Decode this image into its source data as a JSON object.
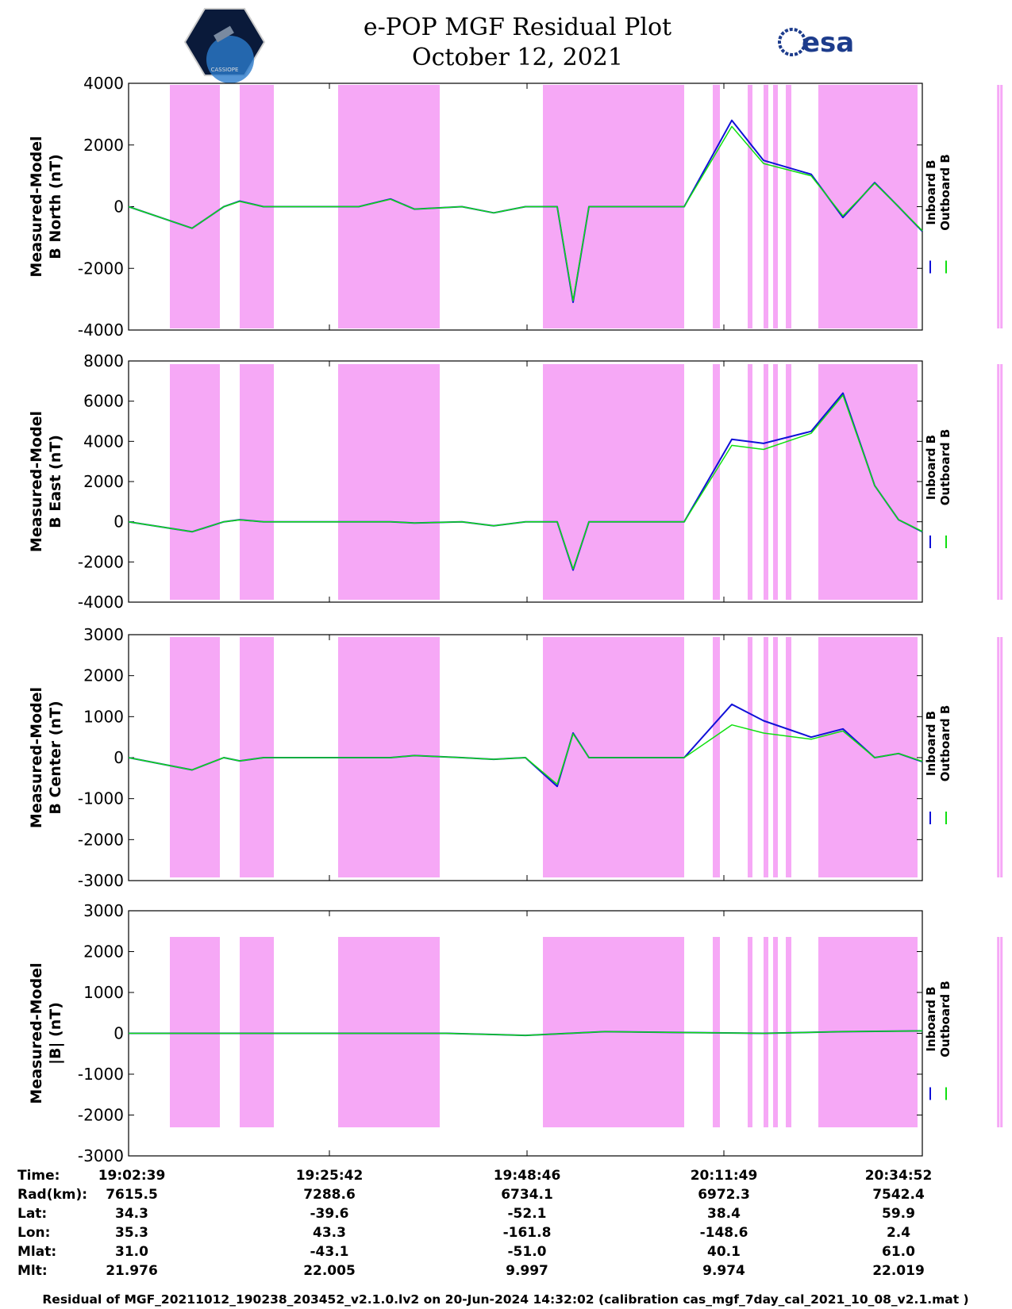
{
  "header": {
    "title": "e-POP MGF Residual Plot",
    "date": "October 12, 2021",
    "logo_left_text": "CASSIOPE",
    "logo_right_text": "esa"
  },
  "colors": {
    "inboard": "#1010d8",
    "outboard": "#10e010",
    "shade": "#f6a8f6"
  },
  "chart_data": [
    {
      "type": "line",
      "ylabel": [
        "Measured-Model",
        "B North (nT)"
      ],
      "ylim": [
        -4000,
        4000
      ],
      "yticks": [
        4000,
        2000,
        0,
        -2000,
        -4000
      ],
      "legend": [
        "Inboard B",
        "Outboard B"
      ],
      "series": [
        {
          "name": "Inboard B",
          "x": [
            0,
            0.08,
            0.12,
            0.14,
            0.17,
            0.22,
            0.27,
            0.29,
            0.33,
            0.36,
            0.42,
            0.46,
            0.5,
            0.54,
            0.56,
            0.58,
            0.6,
            0.63,
            0.66,
            0.7,
            0.76,
            0.8,
            0.86,
            0.9,
            0.94,
            0.97,
            1
          ],
          "y": [
            0,
            -700,
            0,
            180,
            0,
            0,
            0,
            0,
            250,
            -80,
            0,
            -200,
            0,
            0,
            -3100,
            0,
            0,
            0,
            0,
            0,
            2800,
            1500,
            1050,
            -350,
            780,
            0,
            -800
          ]
        },
        {
          "name": "Outboard B",
          "x": [
            0,
            0.08,
            0.12,
            0.14,
            0.17,
            0.22,
            0.27,
            0.29,
            0.33,
            0.36,
            0.42,
            0.46,
            0.5,
            0.54,
            0.56,
            0.58,
            0.6,
            0.63,
            0.66,
            0.7,
            0.76,
            0.8,
            0.86,
            0.9,
            0.94,
            0.97,
            1
          ],
          "y": [
            0,
            -700,
            0,
            170,
            0,
            0,
            0,
            0,
            240,
            -80,
            0,
            -200,
            0,
            0,
            -3050,
            0,
            0,
            0,
            0,
            0,
            2600,
            1400,
            1000,
            -300,
            760,
            0,
            -780
          ]
        }
      ]
    },
    {
      "type": "line",
      "ylabel": [
        "Measured-Model",
        "B East (nT)"
      ],
      "ylim": [
        -4000,
        8000
      ],
      "yticks": [
        8000,
        6000,
        4000,
        2000,
        0,
        -2000,
        -4000
      ],
      "legend": [
        "Inboard B",
        "Outboard B"
      ],
      "series": [
        {
          "name": "Inboard B",
          "x": [
            0,
            0.08,
            0.12,
            0.14,
            0.17,
            0.22,
            0.27,
            0.29,
            0.33,
            0.36,
            0.42,
            0.46,
            0.5,
            0.54,
            0.56,
            0.58,
            0.6,
            0.63,
            0.66,
            0.7,
            0.76,
            0.8,
            0.86,
            0.9,
            0.94,
            0.97,
            1
          ],
          "y": [
            0,
            -500,
            0,
            100,
            0,
            0,
            0,
            0,
            0,
            -60,
            0,
            -200,
            0,
            0,
            -2400,
            0,
            0,
            0,
            0,
            0,
            4100,
            3900,
            4500,
            6400,
            1800,
            100,
            -500
          ]
        },
        {
          "name": "Outboard B",
          "x": [
            0,
            0.08,
            0.12,
            0.14,
            0.17,
            0.22,
            0.27,
            0.29,
            0.33,
            0.36,
            0.42,
            0.46,
            0.5,
            0.54,
            0.56,
            0.58,
            0.6,
            0.63,
            0.66,
            0.7,
            0.76,
            0.8,
            0.86,
            0.9,
            0.94,
            0.97,
            1
          ],
          "y": [
            0,
            -500,
            0,
            90,
            0,
            0,
            0,
            0,
            0,
            -60,
            0,
            -200,
            0,
            0,
            -2350,
            0,
            0,
            0,
            0,
            0,
            3800,
            3600,
            4400,
            6300,
            1800,
            100,
            -480
          ]
        }
      ]
    },
    {
      "type": "line",
      "ylabel": [
        "Measured-Model",
        "B Center (nT)"
      ],
      "ylim": [
        -3000,
        3000
      ],
      "yticks": [
        3000,
        2000,
        1000,
        0,
        -1000,
        -2000,
        -3000
      ],
      "legend": [
        "Inboard B",
        "Outboard B"
      ],
      "series": [
        {
          "name": "Inboard B",
          "x": [
            0,
            0.08,
            0.12,
            0.14,
            0.17,
            0.22,
            0.27,
            0.29,
            0.33,
            0.36,
            0.42,
            0.46,
            0.5,
            0.54,
            0.56,
            0.58,
            0.6,
            0.63,
            0.66,
            0.7,
            0.76,
            0.8,
            0.86,
            0.9,
            0.94,
            0.97,
            1
          ],
          "y": [
            0,
            -300,
            0,
            -80,
            0,
            0,
            0,
            0,
            0,
            50,
            0,
            -40,
            0,
            -700,
            600,
            0,
            0,
            0,
            0,
            0,
            1300,
            900,
            500,
            700,
            0,
            100,
            -100
          ]
        },
        {
          "name": "Outboard B",
          "x": [
            0,
            0.08,
            0.12,
            0.14,
            0.17,
            0.22,
            0.27,
            0.29,
            0.33,
            0.36,
            0.42,
            0.46,
            0.5,
            0.54,
            0.56,
            0.58,
            0.6,
            0.63,
            0.66,
            0.7,
            0.76,
            0.8,
            0.86,
            0.9,
            0.94,
            0.97,
            1
          ],
          "y": [
            0,
            -300,
            0,
            -80,
            0,
            0,
            0,
            0,
            0,
            50,
            0,
            -40,
            0,
            -650,
            580,
            0,
            0,
            0,
            0,
            0,
            800,
            600,
            450,
            650,
            0,
            100,
            -90
          ]
        }
      ]
    },
    {
      "type": "line",
      "ylabel": [
        "Measured-Model",
        "|B| (nT)"
      ],
      "ylim": [
        -3000,
        3000
      ],
      "yticks": [
        3000,
        2000,
        1000,
        0,
        -1000,
        -2000,
        -3000
      ],
      "legend": [
        "Inboard B",
        "Outboard B"
      ],
      "series": [
        {
          "name": "Inboard B",
          "x": [
            0,
            0.1,
            0.2,
            0.3,
            0.4,
            0.5,
            0.6,
            0.7,
            0.8,
            0.9,
            1
          ],
          "y": [
            0,
            0,
            0,
            0,
            0,
            -50,
            40,
            20,
            0,
            40,
            60
          ]
        },
        {
          "name": "Outboard B",
          "x": [
            0,
            0.1,
            0.2,
            0.3,
            0.4,
            0.5,
            0.6,
            0.7,
            0.8,
            0.9,
            1
          ],
          "y": [
            0,
            0,
            0,
            0,
            0,
            -50,
            40,
            20,
            0,
            40,
            60
          ]
        }
      ]
    }
  ],
  "shaded_intervals": [
    [
      0.052,
      0.115
    ],
    [
      0.14,
      0.183
    ],
    [
      0.264,
      0.392
    ],
    [
      0.522,
      0.7
    ],
    [
      0.736,
      0.745
    ],
    [
      0.78,
      0.786
    ],
    [
      0.8,
      0.806
    ],
    [
      0.812,
      0.818
    ],
    [
      0.828,
      0.835
    ],
    [
      0.869,
      1.185
    ],
    [
      0.88,
      0.894
    ],
    [
      0.898,
      0.912
    ]
  ],
  "orbit_table": {
    "labels": [
      "Time:",
      "Rad(km):",
      "Lat:",
      "Lon:",
      "Mlat:",
      "Mlt:"
    ],
    "columns": [
      {
        "values": [
          "19:02:39",
          "7615.5",
          "34.3",
          "35.3",
          "31.0",
          "21.976"
        ]
      },
      {
        "values": [
          "19:25:42",
          "7288.6",
          "-39.6",
          "43.3",
          "-43.1",
          "22.005"
        ]
      },
      {
        "values": [
          "19:48:46",
          "6734.1",
          "-52.1",
          "-161.8",
          "-51.0",
          "9.997"
        ]
      },
      {
        "values": [
          "20:11:49",
          "6972.3",
          "38.4",
          "-148.6",
          "40.1",
          "9.974"
        ]
      },
      {
        "values": [
          "20:34:52",
          "7542.4",
          "59.9",
          "2.4",
          "61.0",
          "22.019"
        ]
      }
    ]
  },
  "footer": "Residual of MGF_20211012_190238_203452_v2.1.0.lv2 on 20-Jun-2024 14:32:02 (calibration cas_mgf_7day_cal_2021_10_08_v2.1.mat )"
}
